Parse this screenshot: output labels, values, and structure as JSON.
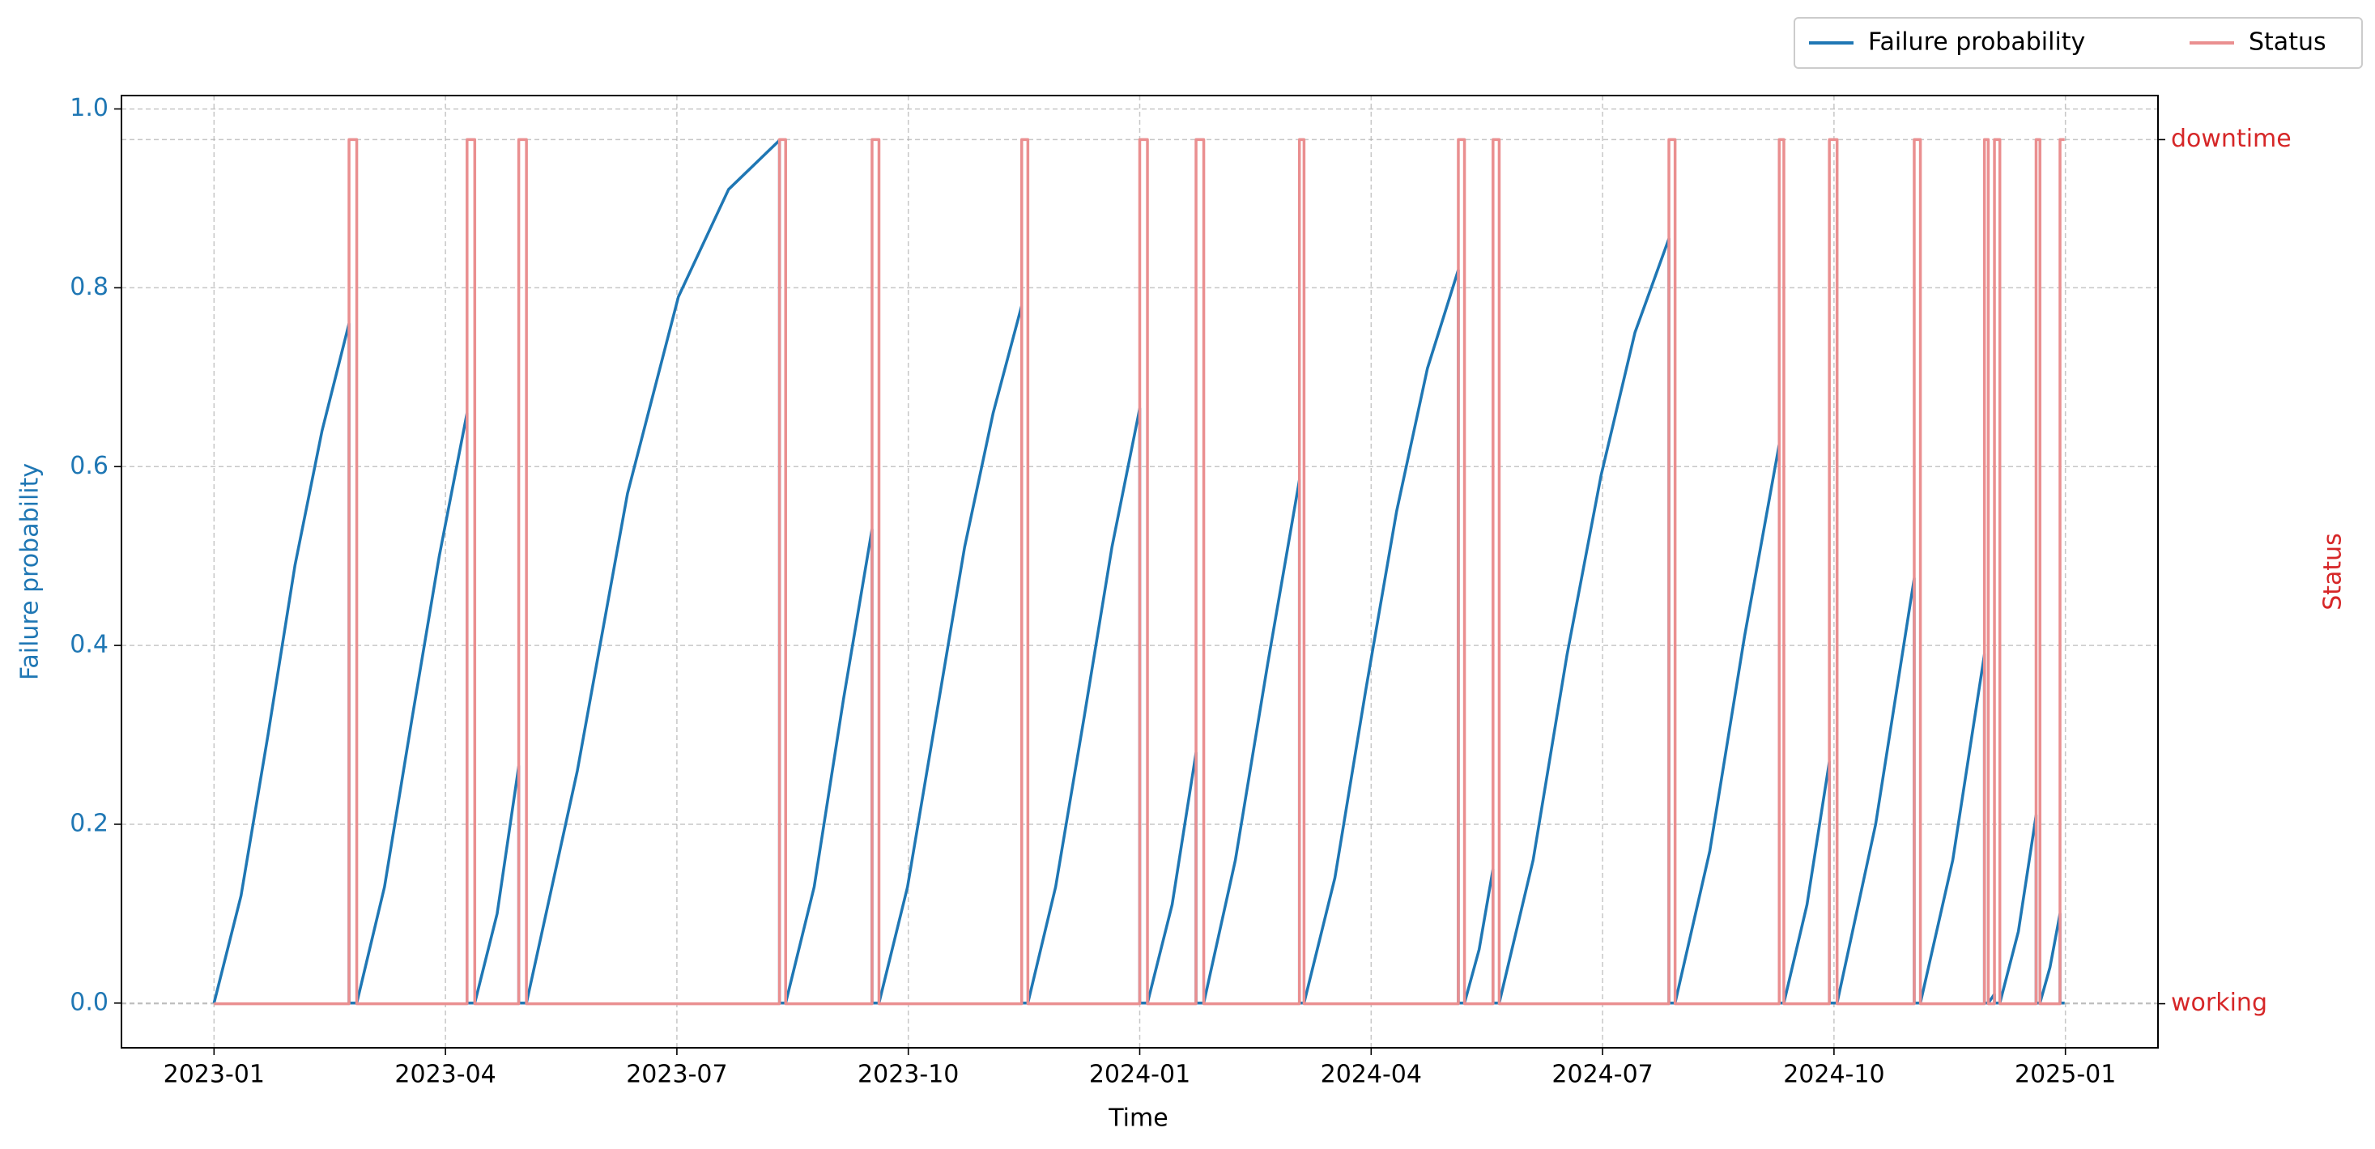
{
  "chart_data": {
    "type": "line",
    "xlabel": "Time",
    "ylabel": "Failure probability",
    "y2label": "Status",
    "xlim": [
      -1.2,
      25.2
    ],
    "xticks": [
      {
        "value": 0,
        "label": "2023-01"
      },
      {
        "value": 3,
        "label": "2023-04"
      },
      {
        "value": 6,
        "label": "2023-07"
      },
      {
        "value": 9,
        "label": "2023-10"
      },
      {
        "value": 12,
        "label": "2024-01"
      },
      {
        "value": 15,
        "label": "2024-04"
      },
      {
        "value": 18,
        "label": "2024-07"
      },
      {
        "value": 21,
        "label": "2024-10"
      },
      {
        "value": 24,
        "label": "2025-01"
      }
    ],
    "ylim": [
      -0.05,
      1.015
    ],
    "yticks": [
      {
        "value": 0,
        "label": "0.0"
      },
      0.2,
      0.4,
      0.6,
      0.8,
      {
        "value": 1,
        "label": "1.0"
      }
    ],
    "y2lim": [
      -0.051,
      1.051
    ],
    "y2ticks": [
      {
        "value": 0,
        "label": "working"
      },
      {
        "value": 1,
        "label": "downtime"
      }
    ],
    "grid": true,
    "legend": "upper right",
    "series": [
      {
        "name": "Failure probability",
        "color": "#1f77b4",
        "x": [
          0,
          0.35,
          0.7,
          1.05,
          1.4,
          1.75,
          1.75,
          1.85,
          2.21,
          2.57,
          2.92,
          3.28,
          3.28,
          3.38,
          3.67,
          3.95,
          3.95,
          4.05,
          4.71,
          5.36,
          6.02,
          6.67,
          7.33,
          7.33,
          7.41,
          7.78,
          8.16,
          8.53,
          8.53,
          8.62,
          8.99,
          9.36,
          9.73,
          10.1,
          10.47,
          10.47,
          10.55,
          10.91,
          11.28,
          11.64,
          12.0,
          12.0,
          12.1,
          12.42,
          12.73,
          12.73,
          12.83,
          13.24,
          13.66,
          14.07,
          14.07,
          14.13,
          14.53,
          14.93,
          15.33,
          15.73,
          16.13,
          16.13,
          16.21,
          16.4,
          16.58,
          16.58,
          16.66,
          17.1,
          17.54,
          17.98,
          18.42,
          18.86,
          18.86,
          18.94,
          19.39,
          19.84,
          20.29,
          20.29,
          20.35,
          20.65,
          20.94,
          20.94,
          21.04,
          21.54,
          22.04,
          22.04,
          22.12,
          22.54,
          22.95,
          22.95,
          23.0,
          23.08,
          23.08,
          23.15,
          23.39,
          23.62,
          23.62,
          23.67,
          23.8,
          23.93,
          23.93,
          23.99
        ],
        "values": [
          0,
          0.12,
          0.3,
          0.49,
          0.64,
          0.76,
          0,
          0,
          0.13,
          0.32,
          0.5,
          0.66,
          0,
          0,
          0.1,
          0.265,
          0,
          0,
          0.26,
          0.57,
          0.79,
          0.91,
          0.965,
          0,
          0,
          0.13,
          0.34,
          0.53,
          0,
          0,
          0.13,
          0.32,
          0.51,
          0.66,
          0.78,
          0,
          0,
          0.13,
          0.32,
          0.51,
          0.665,
          0,
          0,
          0.11,
          0.28,
          0,
          0,
          0.16,
          0.38,
          0.585,
          0,
          0,
          0.14,
          0.35,
          0.55,
          0.71,
          0.82,
          0,
          0,
          0.06,
          0.15,
          0,
          0,
          0.16,
          0.39,
          0.59,
          0.75,
          0.855,
          0,
          0,
          0.17,
          0.41,
          0.625,
          0,
          0,
          0.11,
          0.27,
          0,
          0,
          0.2,
          0.475,
          0,
          0,
          0.16,
          0.39,
          0,
          0,
          0.01,
          0,
          0,
          0.08,
          0.21,
          0,
          0,
          0.04,
          0.1,
          0,
          0
        ]
      },
      {
        "name": "Status",
        "color": "#ea8f90",
        "axis": "y2",
        "x": [
          0,
          1.75,
          1.75,
          1.85,
          1.85,
          3.28,
          3.28,
          3.38,
          3.38,
          3.95,
          3.95,
          4.05,
          4.05,
          7.33,
          7.33,
          7.41,
          7.41,
          8.53,
          8.53,
          8.62,
          8.62,
          10.47,
          10.47,
          10.55,
          10.55,
          12.0,
          12.0,
          12.1,
          12.1,
          12.73,
          12.73,
          12.83,
          12.83,
          14.07,
          14.07,
          14.13,
          14.13,
          16.13,
          16.13,
          16.21,
          16.21,
          16.58,
          16.58,
          16.66,
          16.66,
          18.86,
          18.86,
          18.94,
          18.94,
          20.29,
          20.29,
          20.35,
          20.35,
          20.94,
          20.94,
          21.04,
          21.04,
          22.04,
          22.04,
          22.12,
          22.12,
          22.95,
          22.95,
          23.0,
          23.0,
          23.08,
          23.08,
          23.15,
          23.15,
          23.62,
          23.62,
          23.67,
          23.67,
          23.93,
          23.93,
          23.99
        ],
        "values": [
          0,
          0,
          1,
          1,
          0,
          0,
          1,
          1,
          0,
          0,
          1,
          1,
          0,
          0,
          1,
          1,
          0,
          0,
          1,
          1,
          0,
          0,
          1,
          1,
          0,
          0,
          1,
          1,
          0,
          0,
          1,
          1,
          0,
          0,
          1,
          1,
          0,
          0,
          1,
          1,
          0,
          0,
          1,
          1,
          0,
          0,
          1,
          1,
          0,
          0,
          1,
          1,
          0,
          0,
          1,
          1,
          0,
          0,
          1,
          1,
          0,
          0,
          1,
          1,
          0,
          0,
          1,
          1,
          0,
          0,
          1,
          1,
          0,
          0,
          1,
          1
        ]
      }
    ]
  }
}
